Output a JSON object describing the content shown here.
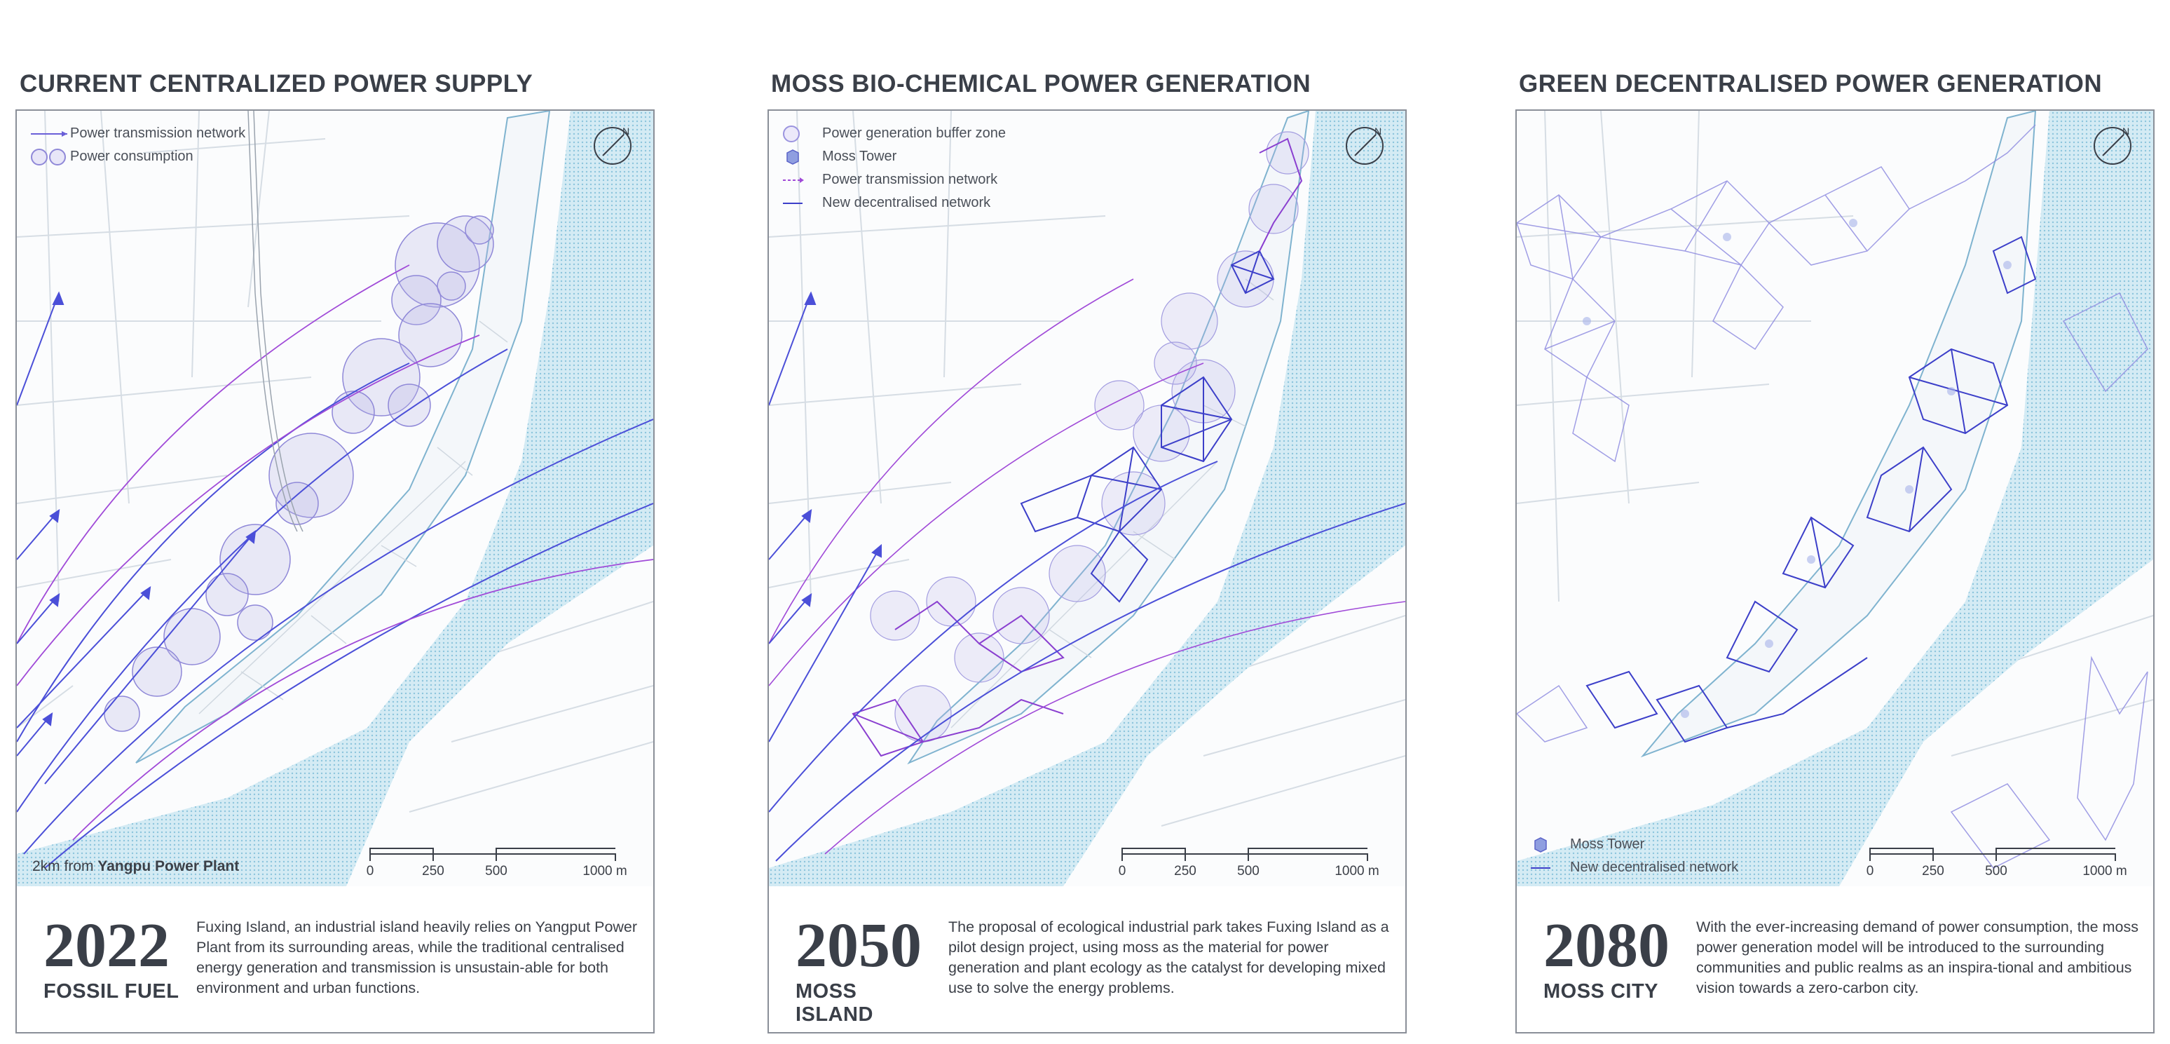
{
  "panels": [
    {
      "title": "CURRENT CENTRALIZED POWER SUPPLY",
      "legend": [
        "Power transmission network",
        "Power consumption"
      ],
      "note_prefix": "2km from ",
      "note_bold": "Yangpu Power Plant",
      "scale": [
        "0",
        "250",
        "500",
        "1000 m"
      ],
      "year": "2022",
      "subtitle": "FOSSIL FUEL",
      "description": "Fuxing Island, an industrial island heavily relies on Yangput Power Plant from its surrounding areas, while the traditional centralised energy generation and transmission is unsustain-able for both environment and urban functions."
    },
    {
      "title": "MOSS BIO-CHEMICAL POWER GENERATION",
      "legend": [
        "Power generation buffer zone",
        "Moss Tower",
        "Power transmission network",
        "New decentralised network"
      ],
      "scale": [
        "0",
        "250",
        "500",
        "1000 m"
      ],
      "year": "2050",
      "subtitle": "MOSS ISLAND",
      "description": "The proposal of ecological industrial park takes Fuxing Island as a pilot design project, using moss as the material for power generation and plant ecology as the catalyst for developing mixed use to solve the energy problems."
    },
    {
      "title": "GREEN DECENTRALISED POWER GENERATION",
      "legend": [
        "Moss Tower",
        "New decentralised network"
      ],
      "scale": [
        "0",
        "250",
        "500",
        "1000 m"
      ],
      "year": "2080",
      "subtitle": "MOSS CITY",
      "description": "With the ever-increasing demand of power consumption, the moss power generation model will be introduced to the surrounding communities and public realms as an inspira-tional and ambitious vision towards a zero-carbon city."
    }
  ],
  "colors": {
    "water": "#bfe0ee",
    "road": "#c9d3dc",
    "network_blue": "#3c3fc9",
    "network_violet": "#8a3fd0",
    "transmission": "#a04ad8",
    "consumption_fill": "#b7b2e6"
  },
  "icons": [
    "north-arrow-icon",
    "moss-tower-icon"
  ]
}
